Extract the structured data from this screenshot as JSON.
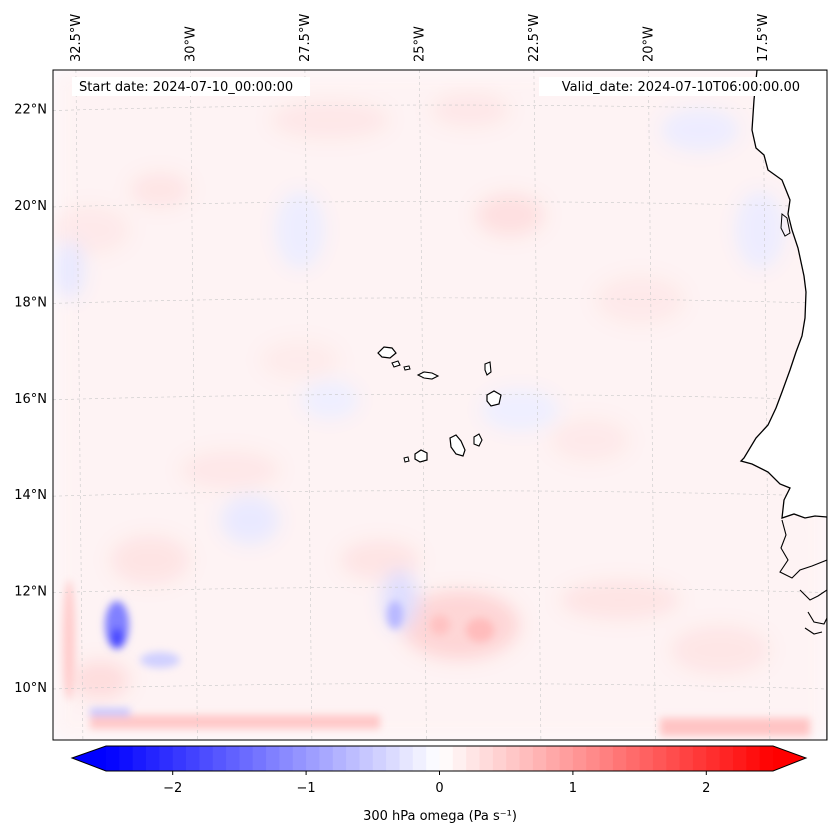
{
  "header": {
    "start_date": "Start date: 2024-07-10_00:00:00",
    "valid_date": "Valid_date: 2024-07-10T06:00:00.00"
  },
  "map": {
    "extent_lon": [
      -33.0,
      -16.1
    ],
    "extent_lat": [
      8.9,
      22.8
    ],
    "lon_ticks": [
      {
        "value": -32.5,
        "label": "32.5°W"
      },
      {
        "value": -30.0,
        "label": "30°W"
      },
      {
        "value": -27.5,
        "label": "27.5°W"
      },
      {
        "value": -25.0,
        "label": "25°W"
      },
      {
        "value": -22.5,
        "label": "22.5°W"
      },
      {
        "value": -20.0,
        "label": "20°W"
      },
      {
        "value": -17.5,
        "label": "17.5°W"
      }
    ],
    "lat_ticks": [
      {
        "value": 22,
        "label": "22°N"
      },
      {
        "value": 20,
        "label": "20°N"
      },
      {
        "value": 18,
        "label": "18°N"
      },
      {
        "value": 16,
        "label": "16°N"
      },
      {
        "value": 14,
        "label": "14°N"
      },
      {
        "value": 12,
        "label": "12°N"
      },
      {
        "value": 10,
        "label": "10°N"
      }
    ],
    "gridlines": true,
    "features": [
      "Cape Verde islands",
      "West African coastline"
    ]
  },
  "colorbar": {
    "label": "300 hPa omega (Pa s⁻¹)",
    "range": [
      -2.5,
      2.5
    ],
    "extend": "both",
    "colormap": "bwr",
    "ticks": [
      {
        "value": -2,
        "label": "−2"
      },
      {
        "value": -1,
        "label": "−1"
      },
      {
        "value": 0,
        "label": "0"
      },
      {
        "value": 1,
        "label": "1"
      },
      {
        "value": 2,
        "label": "2"
      }
    ],
    "colors": {
      "low": "#0000ff",
      "mid": "#ffffff",
      "high": "#ff0000"
    }
  }
}
